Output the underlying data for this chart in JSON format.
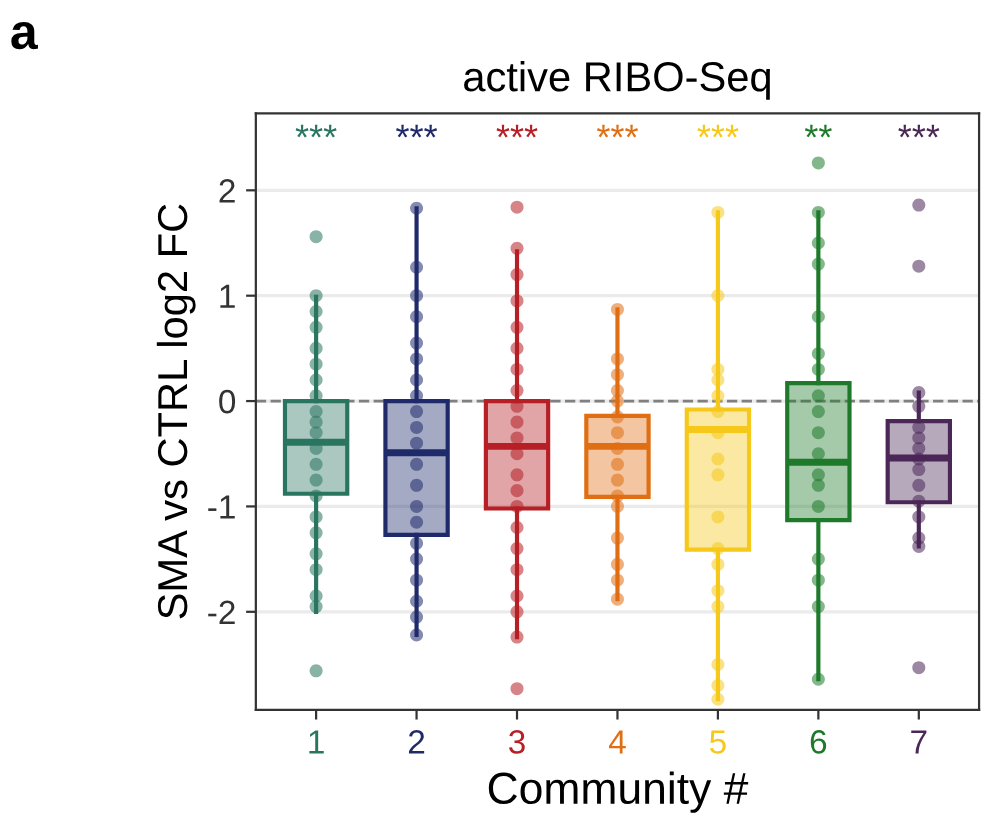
{
  "chart_data": {
    "type": "box",
    "title": "active RIBO-Seq",
    "xlabel": "Community #",
    "ylabel": "SMA vs CTRL log2 FC",
    "categories": [
      "1",
      "2",
      "3",
      "4",
      "5",
      "6",
      "7"
    ],
    "colors": [
      "#2a7560",
      "#1f2a6b",
      "#b51f25",
      "#e06e12",
      "#f6c81a",
      "#1e7a2a",
      "#4b2757"
    ],
    "boxes": [
      {
        "low": -2.0,
        "q1": -0.88,
        "median": -0.39,
        "q3": 0.0,
        "high": 0.99
      },
      {
        "low": -2.22,
        "q1": -1.27,
        "median": -0.49,
        "q3": 0.0,
        "high": 1.83
      },
      {
        "low": -2.24,
        "q1": -1.02,
        "median": -0.43,
        "q3": 0.0,
        "high": 1.42
      },
      {
        "low": -1.88,
        "q1": -0.91,
        "median": -0.43,
        "q3": -0.14,
        "high": 0.87
      },
      {
        "low": -2.83,
        "q1": -1.41,
        "median": -0.27,
        "q3": -0.08,
        "high": 1.79
      },
      {
        "low": -2.64,
        "q1": -1.13,
        "median": -0.58,
        "q3": 0.17,
        "high": 1.79
      },
      {
        "low": -1.38,
        "q1": -0.96,
        "median": -0.54,
        "q3": -0.19,
        "high": 0.08
      }
    ],
    "series": [
      {
        "type": "scatter",
        "color": "#2a7560",
        "x": [
          "1",
          "1",
          "1",
          "1",
          "1",
          "1",
          "1",
          "1",
          "1",
          "1",
          "1",
          "1",
          "1",
          "1",
          "1",
          "1",
          "1",
          "1",
          "1",
          "1",
          "1",
          "1"
        ],
        "values": [
          1.56,
          1.0,
          0.85,
          0.7,
          0.5,
          0.35,
          0.2,
          0.05,
          -0.1,
          -0.2,
          -0.3,
          -0.45,
          -0.6,
          -0.75,
          -0.9,
          -1.1,
          -1.25,
          -1.45,
          -1.6,
          -1.85,
          -1.95,
          -2.56
        ]
      },
      {
        "type": "scatter",
        "color": "#1f2a6b",
        "x": [
          "2",
          "2",
          "2",
          "2",
          "2",
          "2",
          "2",
          "2",
          "2",
          "2",
          "2",
          "2",
          "2",
          "2",
          "2",
          "2",
          "2",
          "2",
          "2",
          "2",
          "2"
        ],
        "values": [
          1.83,
          1.27,
          1.0,
          0.8,
          0.55,
          0.4,
          0.2,
          0.05,
          -0.1,
          -0.25,
          -0.4,
          -0.6,
          -0.8,
          -1.0,
          -1.15,
          -1.35,
          -1.5,
          -1.7,
          -1.9,
          -2.05,
          -2.22
        ]
      },
      {
        "type": "scatter",
        "color": "#b51f25",
        "x": [
          "3",
          "3",
          "3",
          "3",
          "3",
          "3",
          "3",
          "3",
          "3",
          "3",
          "3",
          "3",
          "3",
          "3",
          "3",
          "3",
          "3",
          "3",
          "3",
          "3",
          "3",
          "3"
        ],
        "values": [
          1.84,
          1.45,
          1.2,
          0.95,
          0.7,
          0.5,
          0.3,
          0.1,
          -0.05,
          -0.2,
          -0.35,
          -0.5,
          -0.7,
          -0.85,
          -1.0,
          -1.2,
          -1.4,
          -1.6,
          -1.85,
          -2.0,
          -2.24,
          -2.73
        ]
      },
      {
        "type": "scatter",
        "color": "#e06e12",
        "x": [
          "4",
          "4",
          "4",
          "4",
          "4",
          "4",
          "4",
          "4",
          "4",
          "4",
          "4",
          "4",
          "4",
          "4",
          "4",
          "4"
        ],
        "values": [
          0.87,
          0.4,
          0.25,
          0.1,
          0.0,
          -0.15,
          -0.3,
          -0.45,
          -0.6,
          -0.75,
          -0.9,
          -1.0,
          -1.3,
          -1.55,
          -1.7,
          -1.88
        ]
      },
      {
        "type": "scatter",
        "color": "#f6c81a",
        "x": [
          "5",
          "5",
          "5",
          "5",
          "5",
          "5",
          "5",
          "5",
          "5",
          "5",
          "5",
          "5",
          "5",
          "5",
          "5",
          "5",
          "5"
        ],
        "values": [
          1.79,
          1.0,
          0.3,
          0.2,
          0.05,
          -0.1,
          -0.3,
          -0.55,
          -0.7,
          -1.1,
          -1.4,
          -1.55,
          -1.8,
          -1.95,
          -2.5,
          -2.7,
          -2.83
        ]
      },
      {
        "type": "scatter",
        "color": "#1e7a2a",
        "x": [
          "6",
          "6",
          "6",
          "6",
          "6",
          "6",
          "6",
          "6",
          "6",
          "6",
          "6",
          "6",
          "6",
          "6",
          "6",
          "6",
          "6",
          "6"
        ],
        "values": [
          2.26,
          1.79,
          1.5,
          1.3,
          0.8,
          0.45,
          0.3,
          0.05,
          -0.1,
          -0.3,
          -0.5,
          -0.7,
          -0.8,
          -1.0,
          -1.5,
          -1.7,
          -1.95,
          -2.64
        ]
      },
      {
        "type": "scatter",
        "color": "#4b2757",
        "x": [
          "7",
          "7",
          "7",
          "7",
          "7",
          "7",
          "7",
          "7",
          "7",
          "7",
          "7",
          "7",
          "7",
          "7",
          "7"
        ],
        "values": [
          1.86,
          1.28,
          0.08,
          -0.05,
          -0.25,
          -0.35,
          -0.45,
          -0.55,
          -0.65,
          -0.8,
          -0.95,
          -1.1,
          -1.3,
          -1.38,
          -2.53
        ]
      }
    ],
    "ylim": [
      -2.93,
      2.73
    ],
    "yticks": [
      {
        "value": -2,
        "label": "-2"
      },
      {
        "value": -1,
        "label": "-1"
      },
      0,
      1,
      2
    ],
    "grid": "y",
    "ref_lines": [
      {
        "axis": "y",
        "value": 0,
        "color": "#808080",
        "line_style": "dashed"
      }
    ],
    "annotations": [
      "a",
      "***",
      "***",
      "***",
      "***",
      "***",
      "**",
      "***"
    ]
  }
}
